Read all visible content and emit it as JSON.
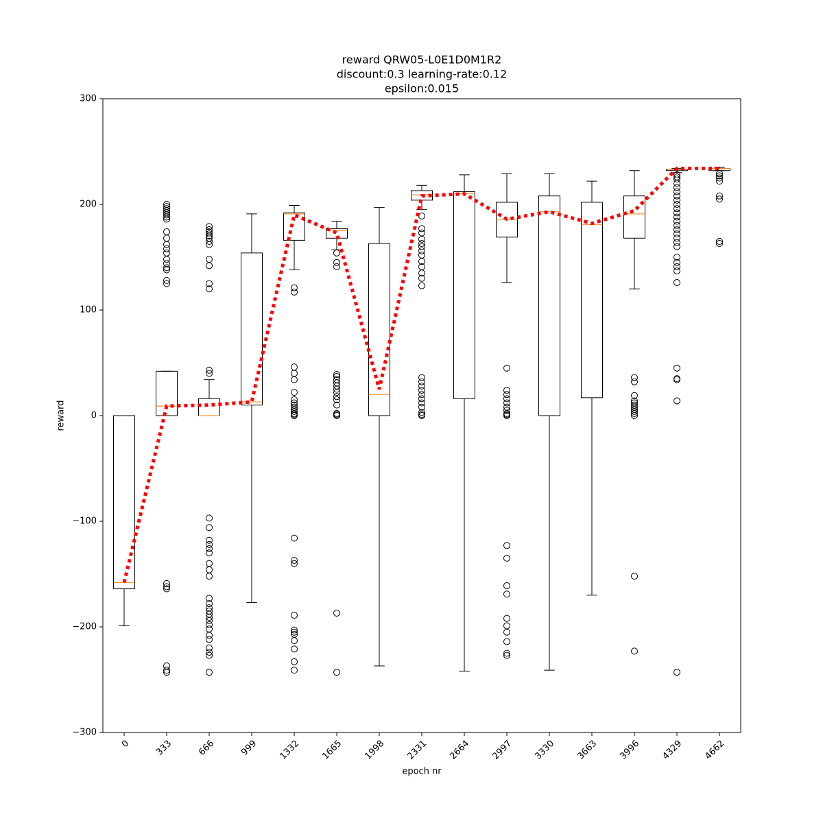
{
  "chart_data": {
    "type": "box",
    "title_lines": [
      "reward QRW05-L0E1D0M1R2",
      "discount:0.3 learning-rate:0.12",
      "epsilon:0.015"
    ],
    "x_label": "epoch nr",
    "y_label": "reward",
    "categories": [
      "0",
      "333",
      "666",
      "999",
      "1332",
      "1665",
      "1998",
      "2331",
      "2664",
      "2997",
      "3330",
      "3663",
      "3996",
      "4329",
      "4662"
    ],
    "ylim": [
      -300,
      300
    ],
    "yticks": [
      {
        "value": -300,
        "label": "−300"
      },
      {
        "value": -200,
        "label": "−200"
      },
      {
        "value": -100,
        "label": "−100"
      },
      0,
      100,
      200,
      300
    ],
    "box_color": "#000000",
    "median_color": "#ff7f0e",
    "boxes": [
      {
        "min": -199,
        "q1": -164,
        "median": -158,
        "q3": 0,
        "max": 0,
        "outliers": []
      },
      {
        "min": 0,
        "q1": 0,
        "median": 9,
        "q3": 42,
        "max": 42,
        "outliers": [
          200,
          198,
          196,
          194,
          192,
          190,
          188,
          186,
          174,
          168,
          162,
          158,
          154,
          148,
          144,
          140,
          138,
          128,
          125,
          -159,
          -162,
          -164,
          -237,
          -241,
          -243
        ]
      },
      {
        "min": 0,
        "q1": 0,
        "median": 0,
        "q3": 16,
        "max": 34,
        "outliers": [
          43,
          40,
          179,
          176,
          174,
          172,
          170,
          168,
          165,
          162,
          148,
          142,
          125,
          120,
          -97,
          -106,
          -118,
          -122,
          -126,
          -130,
          -140,
          -146,
          -152,
          -173,
          -178,
          -182,
          -185,
          -188,
          -191,
          -194,
          -198,
          -202,
          -208,
          -212,
          -220,
          -224,
          -227,
          -243
        ]
      },
      {
        "min": -177,
        "q1": 10,
        "median": 13,
        "q3": 154,
        "max": 191,
        "outliers": []
      },
      {
        "min": 138,
        "q1": 166,
        "median": 191,
        "q3": 192,
        "max": 199,
        "outliers": [
          121,
          117,
          46,
          40,
          34,
          22,
          15,
          12,
          10,
          8,
          6,
          4,
          2,
          1,
          0,
          -116,
          -137,
          -140,
          -189,
          -203,
          -205,
          -207,
          -213,
          -221,
          -233,
          -241
        ]
      },
      {
        "min": 157,
        "q1": 168,
        "median": 175,
        "q3": 177,
        "max": 184,
        "outliers": [
          154,
          145,
          141,
          39,
          37,
          34,
          31,
          28,
          25,
          22,
          18,
          15,
          10,
          2,
          1,
          0,
          -187,
          -243
        ]
      },
      {
        "min": -237,
        "q1": 0,
        "median": 20,
        "q3": 163,
        "max": 197,
        "outliers": []
      },
      {
        "min": 195,
        "q1": 204,
        "median": 209,
        "q3": 213,
        "max": 218,
        "outliers": [
          189,
          177,
          173,
          167,
          163,
          160,
          156,
          152,
          146,
          141,
          135,
          130,
          123,
          36,
          32,
          28,
          24,
          20,
          16,
          12,
          8,
          3,
          1,
          0
        ]
      },
      {
        "min": -242,
        "q1": 16,
        "median": 210,
        "q3": 212,
        "max": 228,
        "outliers": []
      },
      {
        "min": 126,
        "q1": 169,
        "median": 186,
        "q3": 202,
        "max": 229,
        "outliers": [
          45,
          24,
          20,
          16,
          12,
          8,
          5,
          2,
          1,
          0,
          -123,
          -135,
          -161,
          -169,
          -192,
          -199,
          -205,
          -214,
          -225,
          -227
        ]
      },
      {
        "min": -241,
        "q1": 0,
        "median": 193,
        "q3": 208,
        "max": 229,
        "outliers": []
      },
      {
        "min": -170,
        "q1": 17,
        "median": 181,
        "q3": 202,
        "max": 222,
        "outliers": []
      },
      {
        "min": 120,
        "q1": 168,
        "median": 191,
        "q3": 208,
        "max": 232,
        "outliers": [
          36,
          32,
          19,
          14,
          12,
          10,
          8,
          6,
          4,
          2,
          0,
          -152,
          -223
        ]
      },
      {
        "min": 230,
        "q1": 232,
        "median": 233,
        "q3": 233,
        "max": 234,
        "outliers": [
          228,
          226,
          224,
          220,
          216,
          212,
          208,
          204,
          200,
          196,
          192,
          188,
          184,
          180,
          176,
          172,
          168,
          164,
          160,
          150,
          145,
          141,
          137,
          126,
          45,
          35,
          34,
          14,
          -243
        ]
      },
      {
        "min": 232,
        "q1": 232,
        "median": 234,
        "q3": 234,
        "max": 235,
        "outliers": [
          229,
          227,
          225,
          222,
          208,
          205,
          165,
          163
        ]
      }
    ],
    "mean_line": {
      "color": "#ff0000",
      "values": [
        -158,
        9,
        10,
        13,
        190,
        173,
        25,
        208,
        210,
        186,
        193,
        182,
        194,
        234,
        234
      ]
    }
  }
}
